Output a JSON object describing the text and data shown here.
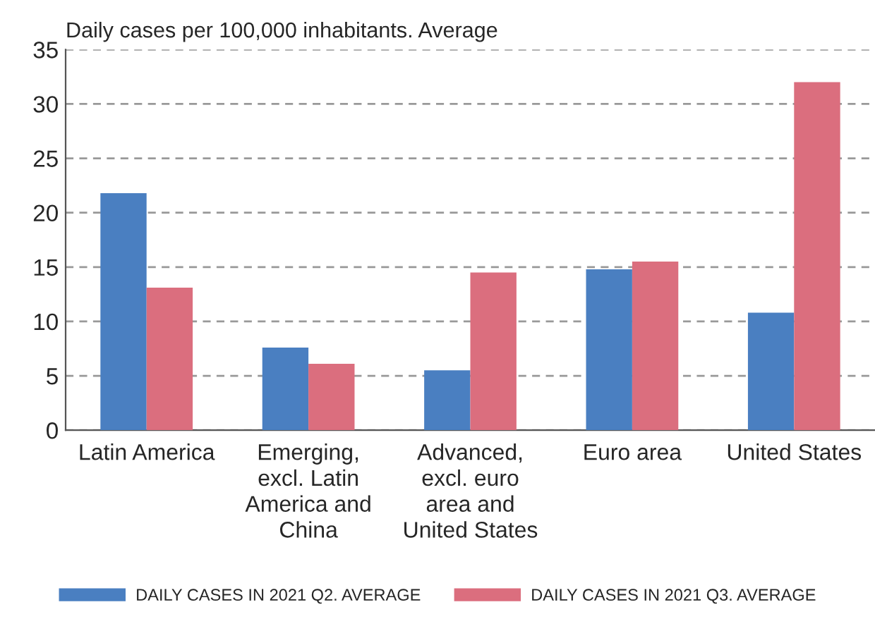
{
  "chart_data": {
    "type": "bar",
    "ylabel": "Daily cases per 100,000 inhabitants. Average",
    "categories": [
      "Latin America",
      "Emerging, excl. Latin America and China",
      "Advanced, excl. euro area and United States",
      "Euro area",
      "United States"
    ],
    "series": [
      {
        "name": "DAILY CASES IN 2021 Q2. AVERAGE",
        "color": "#4a7fc1",
        "values": [
          21.8,
          7.6,
          5.5,
          14.8,
          10.8
        ]
      },
      {
        "name": "DAILY CASES IN 2021 Q3. AVERAGE",
        "color": "#db6e7e",
        "values": [
          13.1,
          6.1,
          14.5,
          15.5,
          32.0
        ]
      }
    ],
    "ylim": [
      0,
      35
    ],
    "yticks": [
      0,
      5,
      10,
      15,
      20,
      25,
      30,
      35
    ],
    "grid": "y",
    "legend": "bottom"
  }
}
